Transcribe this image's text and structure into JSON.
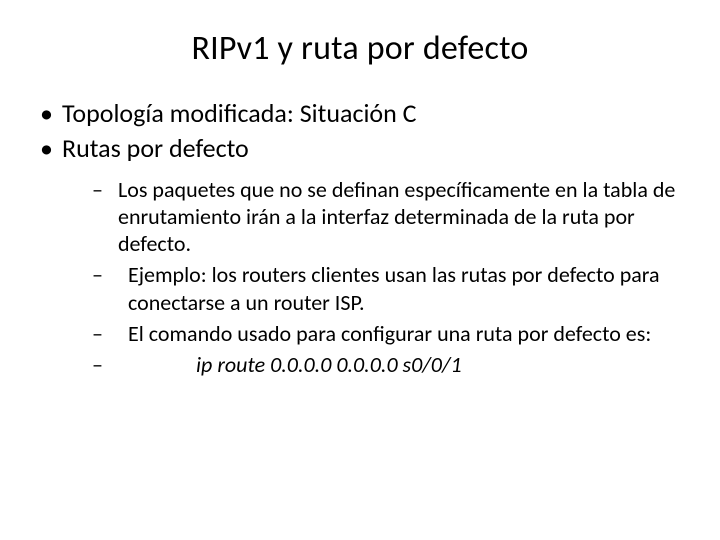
{
  "background_color": "#ffffff",
  "text_color": "#000000",
  "title": {
    "text": "RIPv1 y ruta por defecto",
    "fontsize": 34,
    "align": "center"
  },
  "level1": {
    "fontsize": 26,
    "bullet_char": "•",
    "items": [
      {
        "text": "Topología modificada: Situación C"
      },
      {
        "text": "Rutas por defecto"
      }
    ]
  },
  "level2": {
    "fontsize": 22,
    "bullet_char": "–",
    "items": [
      {
        "text": "Los paquetes que no se definan específicamente en la tabla de enrutamiento irán a la interfaz determinada de la ruta por defecto."
      },
      {
        "text": "Ejemplo: los routers clientes usan las rutas por defecto para conectarse a un router ISP."
      },
      {
        "text": "El comando usado para configurar una ruta por defecto es:"
      },
      {
        "text_cmd": "ip route 0.0.0.0 0.0.0.0 s0/0/1",
        "italic": true
      }
    ]
  }
}
